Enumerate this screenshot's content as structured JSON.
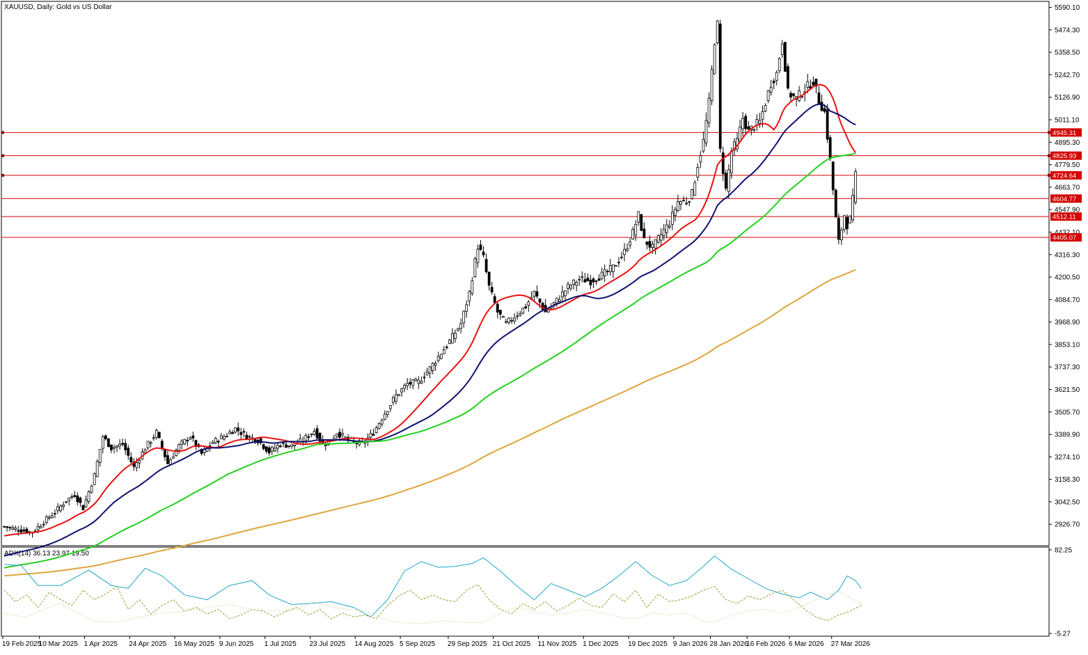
{
  "chart_data": [
    {
      "type": "candlestick",
      "title": "XAUUSD, Daily:  Gold vs US Dollar",
      "ylim": [
        2820.0,
        5610.0
      ],
      "y_ticks": [
        "5590.10",
        "5474.30",
        "5358.50",
        "5242.70",
        "5126.90",
        "5011.10",
        "4895.30",
        "4779.50",
        "4663.70",
        "4547.90",
        "4432.10",
        "4316.30",
        "4200.50",
        "4084.70",
        "3968.90",
        "3853.10",
        "3737.30",
        "3621.50",
        "3505.70",
        "3389.90",
        "3274.10",
        "3158.30",
        "3042.50",
        "2926.70"
      ],
      "x_ticks": [
        "19 Feb 2025",
        "10 Mar 2025",
        "1 Apr 2025",
        "24 Apr 2025",
        "16 May 2025",
        "9 Jun 2025",
        "1 Jul 2025",
        "23 Jul 2025",
        "14 Aug 2025",
        "5 Sep 2025",
        "29 Sep 2025",
        "21 Oct 2025",
        "11 Nov 2025",
        "1 Dec 2025",
        "19 Dec 2025",
        "9 Jan 2026",
        "28 Jan 2026",
        "16 Feb 2026",
        "6 Mar 2026",
        "27 Mar 2026"
      ],
      "x_tick_bar_index": [
        0,
        13,
        29,
        45,
        61,
        77,
        93,
        109,
        125,
        141,
        158,
        174,
        190,
        206,
        222,
        238,
        251,
        264,
        279,
        294
      ],
      "bar_count": 300,
      "levels": [
        {
          "value": 4945.31,
          "label": "4945.31"
        },
        {
          "value": 4825.93,
          "label": "4825.93"
        },
        {
          "value": 4724.64,
          "label": "4724.64"
        },
        {
          "value": 4604.77,
          "label": "4604.77"
        },
        {
          "value": 4512.11,
          "label": "4512.11"
        },
        {
          "value": 4405.07,
          "label": "4405.07"
        }
      ],
      "close_anchors": [
        [
          0,
          2915
        ],
        [
          5,
          2900
        ],
        [
          10,
          2885
        ],
        [
          14,
          2940
        ],
        [
          18,
          2990
        ],
        [
          22,
          3050
        ],
        [
          25,
          3080
        ],
        [
          28,
          3010
        ],
        [
          32,
          3180
        ],
        [
          35,
          3380
        ],
        [
          38,
          3320
        ],
        [
          42,
          3340
        ],
        [
          46,
          3220
        ],
        [
          50,
          3320
        ],
        [
          54,
          3400
        ],
        [
          58,
          3240
        ],
        [
          62,
          3330
        ],
        [
          66,
          3380
        ],
        [
          70,
          3290
        ],
        [
          74,
          3350
        ],
        [
          78,
          3380
        ],
        [
          82,
          3420
        ],
        [
          86,
          3380
        ],
        [
          90,
          3360
        ],
        [
          94,
          3300
        ],
        [
          98,
          3340
        ],
        [
          102,
          3330
        ],
        [
          106,
          3360
        ],
        [
          110,
          3410
        ],
        [
          113,
          3340
        ],
        [
          116,
          3360
        ],
        [
          118,
          3400
        ],
        [
          121,
          3370
        ],
        [
          124,
          3350
        ],
        [
          127,
          3340
        ],
        [
          131,
          3400
        ],
        [
          135,
          3500
        ],
        [
          139,
          3590
        ],
        [
          143,
          3650
        ],
        [
          147,
          3660
        ],
        [
          151,
          3730
        ],
        [
          155,
          3810
        ],
        [
          158,
          3870
        ],
        [
          162,
          3960
        ],
        [
          165,
          4120
        ],
        [
          168,
          4360
        ],
        [
          170,
          4300
        ],
        [
          172,
          4150
        ],
        [
          175,
          4020
        ],
        [
          178,
          3960
        ],
        [
          182,
          4010
        ],
        [
          185,
          4050
        ],
        [
          188,
          4120
        ],
        [
          190,
          4070
        ],
        [
          192,
          4020
        ],
        [
          196,
          4080
        ],
        [
          200,
          4150
        ],
        [
          204,
          4190
        ],
        [
          208,
          4180
        ],
        [
          212,
          4210
        ],
        [
          216,
          4250
        ],
        [
          220,
          4330
        ],
        [
          223,
          4430
        ],
        [
          225,
          4520
        ],
        [
          227,
          4390
        ],
        [
          230,
          4350
        ],
        [
          233,
          4420
        ],
        [
          236,
          4480
        ],
        [
          239,
          4590
        ],
        [
          242,
          4590
        ],
        [
          244,
          4630
        ],
        [
          246,
          4780
        ],
        [
          248,
          4900
        ],
        [
          250,
          5100
        ],
        [
          252,
          5420
        ],
        [
          253,
          5500
        ],
        [
          254,
          4850
        ],
        [
          256,
          4650
        ],
        [
          258,
          4850
        ],
        [
          260,
          4900
        ],
        [
          262,
          5020
        ],
        [
          264,
          4950
        ],
        [
          266,
          4980
        ],
        [
          268,
          5000
        ],
        [
          270,
          5100
        ],
        [
          272,
          5200
        ],
        [
          274,
          5250
        ],
        [
          276,
          5420
        ],
        [
          278,
          5150
        ],
        [
          281,
          5120
        ],
        [
          284,
          5170
        ],
        [
          287,
          5210
        ],
        [
          289,
          5110
        ],
        [
          291,
          5050
        ],
        [
          293,
          4800
        ],
        [
          295,
          4500
        ],
        [
          296,
          4380
        ],
        [
          297,
          4450
        ],
        [
          298,
          4520
        ],
        [
          299,
          4470
        ],
        [
          300,
          4500
        ],
        [
          301,
          4600
        ],
        [
          302,
          4724
        ]
      ],
      "series": [
        {
          "name": "MA 20",
          "color": "#e8110f",
          "start": [
            0,
            2865
          ],
          "window": 20
        },
        {
          "name": "MA 50",
          "color": "#0e116e",
          "start": [
            0,
            2760
          ],
          "window": 40
        },
        {
          "name": "MA 100",
          "color": "#23d01f",
          "start": [
            0,
            2700
          ],
          "window": 80
        },
        {
          "name": "MA 200",
          "color": "#dfa53b",
          "start": [
            0,
            2660
          ],
          "window": 200
        }
      ]
    },
    {
      "type": "line",
      "title": "ADX(14) 36.13 23.97 19.50",
      "ylim": [
        -5.27,
        82.25
      ],
      "y_ticks": [
        "82.25",
        "-5.27"
      ],
      "series": [
        {
          "name": "ADX",
          "color": "#1ea6c7",
          "dash": "none",
          "points": [
            [
              0,
              67
            ],
            [
              6,
              66
            ],
            [
              12,
              45
            ],
            [
              20,
              45
            ],
            [
              30,
              61
            ],
            [
              38,
              45
            ],
            [
              44,
              42
            ],
            [
              50,
              63
            ],
            [
              56,
              55
            ],
            [
              64,
              35
            ],
            [
              72,
              30
            ],
            [
              80,
              45
            ],
            [
              88,
              50
            ],
            [
              94,
              35
            ],
            [
              102,
              25
            ],
            [
              108,
              26
            ],
            [
              116,
              28
            ],
            [
              124,
              22
            ],
            [
              130,
              12
            ],
            [
              136,
              30
            ],
            [
              142,
              60
            ],
            [
              148,
              70
            ],
            [
              154,
              64
            ],
            [
              160,
              65
            ],
            [
              166,
              68
            ],
            [
              170,
              74
            ],
            [
              176,
              60
            ],
            [
              182,
              44
            ],
            [
              188,
              30
            ],
            [
              194,
              47
            ],
            [
              200,
              40
            ],
            [
              206,
              33
            ],
            [
              212,
              42
            ],
            [
              218,
              55
            ],
            [
              224,
              70
            ],
            [
              230,
              55
            ],
            [
              236,
              45
            ],
            [
              242,
              50
            ],
            [
              248,
              65
            ],
            [
              252,
              76
            ],
            [
              258,
              62
            ],
            [
              264,
              52
            ],
            [
              270,
              42
            ],
            [
              276,
              36
            ],
            [
              282,
              32
            ],
            [
              286,
              38
            ],
            [
              292,
              30
            ],
            [
              296,
              40
            ],
            [
              299,
              55
            ],
            [
              302,
              50
            ],
            [
              304,
              42
            ]
          ]
        },
        {
          "name": "+DI",
          "color": "#8aa32a",
          "dash": "3 2",
          "points": [
            [
              0,
              40
            ],
            [
              4,
              28
            ],
            [
              8,
              35
            ],
            [
              12,
              22
            ],
            [
              16,
              38
            ],
            [
              20,
              30
            ],
            [
              24,
              24
            ],
            [
              28,
              40
            ],
            [
              32,
              30
            ],
            [
              36,
              36
            ],
            [
              40,
              44
            ],
            [
              44,
              20
            ],
            [
              48,
              30
            ],
            [
              52,
              15
            ],
            [
              56,
              24
            ],
            [
              60,
              30
            ],
            [
              64,
              18
            ],
            [
              68,
              22
            ],
            [
              72,
              15
            ],
            [
              76,
              20
            ],
            [
              80,
              10
            ],
            [
              84,
              14
            ],
            [
              88,
              20
            ],
            [
              92,
              18
            ],
            [
              96,
              12
            ],
            [
              100,
              18
            ],
            [
              104,
              22
            ],
            [
              108,
              14
            ],
            [
              112,
              20
            ],
            [
              116,
              10
            ],
            [
              120,
              16
            ],
            [
              124,
              12
            ],
            [
              128,
              14
            ],
            [
              132,
              10
            ],
            [
              136,
              24
            ],
            [
              140,
              34
            ],
            [
              144,
              40
            ],
            [
              148,
              30
            ],
            [
              152,
              35
            ],
            [
              156,
              30
            ],
            [
              160,
              28
            ],
            [
              164,
              40
            ],
            [
              168,
              46
            ],
            [
              172,
              30
            ],
            [
              176,
              20
            ],
            [
              180,
              15
            ],
            [
              184,
              26
            ],
            [
              188,
              20
            ],
            [
              192,
              28
            ],
            [
              196,
              18
            ],
            [
              200,
              24
            ],
            [
              204,
              32
            ],
            [
              208,
              24
            ],
            [
              212,
              22
            ],
            [
              216,
              36
            ],
            [
              220,
              28
            ],
            [
              224,
              40
            ],
            [
              228,
              22
            ],
            [
              232,
              36
            ],
            [
              236,
              28
            ],
            [
              240,
              30
            ],
            [
              244,
              34
            ],
            [
              248,
              40
            ],
            [
              252,
              44
            ],
            [
              256,
              30
            ],
            [
              260,
              26
            ],
            [
              264,
              34
            ],
            [
              268,
              30
            ],
            [
              272,
              36
            ],
            [
              276,
              40
            ],
            [
              280,
              30
            ],
            [
              284,
              20
            ],
            [
              288,
              12
            ],
            [
              292,
              8
            ],
            [
              296,
              14
            ],
            [
              300,
              18
            ],
            [
              304,
              24
            ]
          ]
        },
        {
          "name": "-DI",
          "color": "#e0d3a3",
          "dash": "2 2",
          "points": [
            [
              0,
              15
            ],
            [
              8,
              12
            ],
            [
              14,
              20
            ],
            [
              20,
              26
            ],
            [
              26,
              16
            ],
            [
              32,
              8
            ],
            [
              40,
              6
            ],
            [
              48,
              12
            ],
            [
              56,
              16
            ],
            [
              64,
              18
            ],
            [
              72,
              22
            ],
            [
              80,
              25
            ],
            [
              88,
              20
            ],
            [
              96,
              18
            ],
            [
              104,
              20
            ],
            [
              110,
              28
            ],
            [
              116,
              22
            ],
            [
              122,
              20
            ],
            [
              128,
              18
            ],
            [
              134,
              10
            ],
            [
              140,
              6
            ],
            [
              148,
              5
            ],
            [
              156,
              8
            ],
            [
              164,
              6
            ],
            [
              170,
              6
            ],
            [
              176,
              16
            ],
            [
              182,
              22
            ],
            [
              188,
              18
            ],
            [
              194,
              14
            ],
            [
              200,
              16
            ],
            [
              206,
              20
            ],
            [
              212,
              16
            ],
            [
              218,
              12
            ],
            [
              224,
              10
            ],
            [
              230,
              16
            ],
            [
              236,
              14
            ],
            [
              242,
              16
            ],
            [
              248,
              8
            ],
            [
              252,
              6
            ],
            [
              258,
              14
            ],
            [
              264,
              18
            ],
            [
              270,
              20
            ],
            [
              276,
              16
            ],
            [
              282,
              22
            ],
            [
              288,
              30
            ],
            [
              292,
              34
            ],
            [
              296,
              38
            ],
            [
              300,
              32
            ],
            [
              304,
              26
            ]
          ]
        }
      ]
    }
  ]
}
